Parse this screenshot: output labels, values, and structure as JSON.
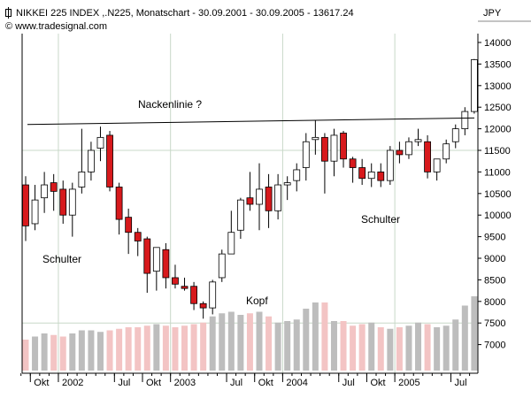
{
  "header": {
    "title": "NIKKEI 225 INDEX ,.N225, Monatschart - 30.09.2001 - 30.09.2005 - 13617.24",
    "copyright": "© www.tradesignal.com",
    "unit": "JPY"
  },
  "annotations": {
    "neckline": "Nackenlinie ?",
    "left_shoulder": "Schulter",
    "head": "Kopf",
    "right_shoulder": "Schulter"
  },
  "colors": {
    "up_fill": "#ffffff",
    "down_fill": "#d7191c",
    "candle_outline": "#000000",
    "volume_up": "#bdbdbd",
    "volume_down": "#f3c4c4",
    "grid": "#c8d8c8",
    "neckline": "#000000"
  },
  "chart_data": {
    "type": "candlestick",
    "title": "NIKKEI 225 INDEX ,.N225, Monatschart - 30.09.2001 - 30.09.2005 - 13617.24",
    "ylabel": "JPY",
    "ylim": [
      6700,
      14300
    ],
    "yticks": [
      7000,
      7500,
      8000,
      8500,
      9000,
      9500,
      10000,
      10500,
      11000,
      11500,
      12000,
      12500,
      13000,
      13500,
      14000
    ],
    "xtick_labels": [
      {
        "label": "Okt",
        "date": "2001-10"
      },
      {
        "label": "2002",
        "date": "2002-01"
      },
      {
        "label": "Jul",
        "date": "2002-07"
      },
      {
        "label": "Okt",
        "date": "2002-10"
      },
      {
        "label": "2003",
        "date": "2003-01"
      },
      {
        "label": "Jul",
        "date": "2003-07"
      },
      {
        "label": "Okt",
        "date": "2003-10"
      },
      {
        "label": "2004",
        "date": "2004-01"
      },
      {
        "label": "Jul",
        "date": "2004-07"
      },
      {
        "label": "Okt",
        "date": "2004-10"
      },
      {
        "label": "2005",
        "date": "2005-01"
      },
      {
        "label": "Jul",
        "date": "2005-07"
      }
    ],
    "neckline": {
      "start": {
        "date": "2001-09",
        "value": 12100
      },
      "end": {
        "date": "2005-09",
        "value": 12250
      }
    },
    "candles": [
      {
        "date": "2001-09",
        "open": 10700,
        "high": 10900,
        "low": 9400,
        "close": 9750,
        "volume": 100
      },
      {
        "date": "2001-10",
        "open": 9800,
        "high": 10700,
        "low": 9650,
        "close": 10350,
        "volume": 110
      },
      {
        "date": "2001-11",
        "open": 10400,
        "high": 11000,
        "low": 10050,
        "close": 10700,
        "volume": 120
      },
      {
        "date": "2001-12",
        "open": 10750,
        "high": 10950,
        "low": 10100,
        "close": 10550,
        "volume": 115
      },
      {
        "date": "2002-01",
        "open": 10600,
        "high": 10800,
        "low": 9800,
        "close": 10000,
        "volume": 110
      },
      {
        "date": "2002-02",
        "open": 10000,
        "high": 10750,
        "low": 9500,
        "close": 10600,
        "volume": 120
      },
      {
        "date": "2002-03",
        "open": 10650,
        "high": 12000,
        "low": 10500,
        "close": 11000,
        "volume": 130
      },
      {
        "date": "2002-04",
        "open": 11000,
        "high": 11700,
        "low": 10800,
        "close": 11500,
        "volume": 130
      },
      {
        "date": "2002-05",
        "open": 11550,
        "high": 12050,
        "low": 11250,
        "close": 11800,
        "volume": 125
      },
      {
        "date": "2002-06",
        "open": 11850,
        "high": 11950,
        "low": 10550,
        "close": 10650,
        "volume": 130
      },
      {
        "date": "2002-07",
        "open": 10650,
        "high": 10750,
        "low": 9550,
        "close": 9900,
        "volume": 135
      },
      {
        "date": "2002-08",
        "open": 9950,
        "high": 10150,
        "low": 9100,
        "close": 9600,
        "volume": 140
      },
      {
        "date": "2002-09",
        "open": 9600,
        "high": 9700,
        "low": 9050,
        "close": 9400,
        "volume": 140
      },
      {
        "date": "2002-10",
        "open": 9450,
        "high": 9500,
        "low": 8200,
        "close": 8650,
        "volume": 145
      },
      {
        "date": "2002-11",
        "open": 8700,
        "high": 9250,
        "low": 8250,
        "close": 9250,
        "volume": 150
      },
      {
        "date": "2002-12",
        "open": 9200,
        "high": 9350,
        "low": 8300,
        "close": 8550,
        "volume": 145
      },
      {
        "date": "2003-01",
        "open": 8550,
        "high": 8850,
        "low": 8300,
        "close": 8400,
        "volume": 140
      },
      {
        "date": "2003-02",
        "open": 8350,
        "high": 8550,
        "low": 8250,
        "close": 8300,
        "volume": 145
      },
      {
        "date": "2003-03",
        "open": 8350,
        "high": 8450,
        "low": 7800,
        "close": 7950,
        "volume": 150
      },
      {
        "date": "2003-04",
        "open": 7950,
        "high": 8000,
        "low": 7600,
        "close": 7850,
        "volume": 155
      },
      {
        "date": "2003-05",
        "open": 7850,
        "high": 8500,
        "low": 7700,
        "close": 8450,
        "volume": 175
      },
      {
        "date": "2003-06",
        "open": 8550,
        "high": 9200,
        "low": 8450,
        "close": 9100,
        "volume": 185
      },
      {
        "date": "2003-07",
        "open": 9100,
        "high": 10100,
        "low": 9100,
        "close": 9600,
        "volume": 190
      },
      {
        "date": "2003-08",
        "open": 9650,
        "high": 10400,
        "low": 9450,
        "close": 10350,
        "volume": 180
      },
      {
        "date": "2003-09",
        "open": 10400,
        "high": 11000,
        "low": 10100,
        "close": 10250,
        "volume": 185
      },
      {
        "date": "2003-10",
        "open": 10250,
        "high": 11200,
        "low": 9650,
        "close": 10600,
        "volume": 190
      },
      {
        "date": "2003-11",
        "open": 10650,
        "high": 10950,
        "low": 9700,
        "close": 10100,
        "volume": 175
      },
      {
        "date": "2003-12",
        "open": 10100,
        "high": 10950,
        "low": 9900,
        "close": 10700,
        "volume": 155
      },
      {
        "date": "2004-01",
        "open": 10700,
        "high": 10900,
        "low": 10350,
        "close": 10750,
        "volume": 160
      },
      {
        "date": "2004-02",
        "open": 10800,
        "high": 11200,
        "low": 10550,
        "close": 11050,
        "volume": 165
      },
      {
        "date": "2004-03",
        "open": 11100,
        "high": 11900,
        "low": 10800,
        "close": 11700,
        "volume": 200
      },
      {
        "date": "2004-04",
        "open": 11750,
        "high": 12200,
        "low": 11400,
        "close": 11800,
        "volume": 220
      },
      {
        "date": "2004-05",
        "open": 11800,
        "high": 11900,
        "low": 10500,
        "close": 11250,
        "volume": 220
      },
      {
        "date": "2004-06",
        "open": 11250,
        "high": 12000,
        "low": 10900,
        "close": 11850,
        "volume": 160
      },
      {
        "date": "2004-07",
        "open": 11900,
        "high": 11950,
        "low": 11100,
        "close": 11300,
        "volume": 160
      },
      {
        "date": "2004-08",
        "open": 11300,
        "high": 11350,
        "low": 10750,
        "close": 11100,
        "volume": 145
      },
      {
        "date": "2004-09",
        "open": 11100,
        "high": 11300,
        "low": 10700,
        "close": 10850,
        "volume": 150
      },
      {
        "date": "2004-10",
        "open": 10850,
        "high": 11200,
        "low": 10650,
        "close": 11000,
        "volume": 155
      },
      {
        "date": "2004-11",
        "open": 11000,
        "high": 11200,
        "low": 10650,
        "close": 10800,
        "volume": 140
      },
      {
        "date": "2004-12",
        "open": 10800,
        "high": 11600,
        "low": 10700,
        "close": 11500,
        "volume": 135
      },
      {
        "date": "2005-01",
        "open": 11500,
        "high": 11700,
        "low": 11200,
        "close": 11400,
        "volume": 140
      },
      {
        "date": "2005-02",
        "open": 11400,
        "high": 11800,
        "low": 11300,
        "close": 11700,
        "volume": 145
      },
      {
        "date": "2005-03",
        "open": 11700,
        "high": 12000,
        "low": 11600,
        "close": 11750,
        "volume": 155
      },
      {
        "date": "2005-04",
        "open": 11700,
        "high": 11850,
        "low": 10850,
        "close": 11000,
        "volume": 150
      },
      {
        "date": "2005-05",
        "open": 11000,
        "high": 11300,
        "low": 10800,
        "close": 11300,
        "volume": 140
      },
      {
        "date": "2005-06",
        "open": 11300,
        "high": 11750,
        "low": 11200,
        "close": 11650,
        "volume": 145
      },
      {
        "date": "2005-07",
        "open": 11700,
        "high": 12100,
        "low": 11550,
        "close": 12000,
        "volume": 165
      },
      {
        "date": "2005-08",
        "open": 12000,
        "high": 12500,
        "low": 11850,
        "close": 12400,
        "volume": 210
      },
      {
        "date": "2005-09",
        "open": 12400,
        "high": 13617,
        "low": 12350,
        "close": 13600,
        "volume": 240
      }
    ]
  }
}
